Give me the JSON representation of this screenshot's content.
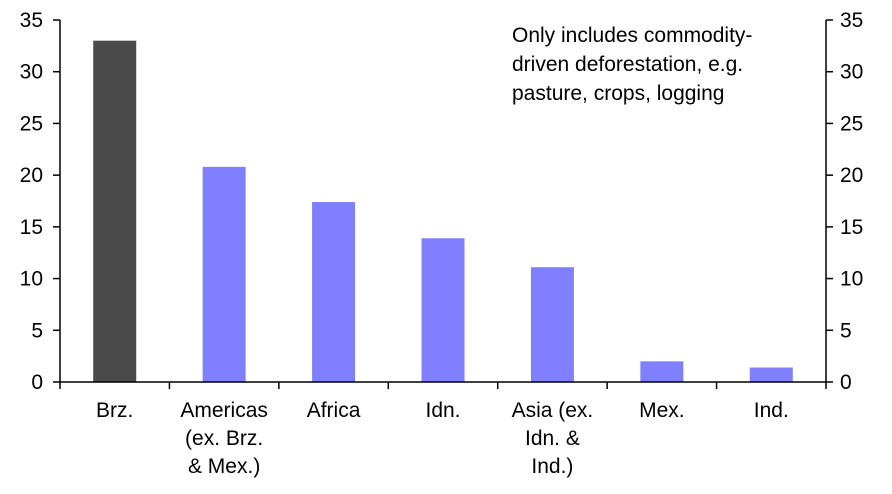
{
  "chart_data": {
    "type": "bar",
    "title": "",
    "xlabel": "",
    "ylabel": "",
    "ylim": [
      0,
      35
    ],
    "yticks": [
      0,
      5,
      10,
      15,
      20,
      25,
      30,
      35
    ],
    "secondary_y_axis": true,
    "grid": false,
    "categories": [
      [
        "Brz."
      ],
      [
        "Americas",
        "(ex. Brz.",
        "& Mex.)"
      ],
      [
        "Africa"
      ],
      [
        "Idn."
      ],
      [
        "Asia (ex.",
        "Idn. &",
        "Ind.)"
      ],
      [
        "Mex."
      ],
      [
        "Ind."
      ]
    ],
    "values": [
      33,
      20.8,
      17.4,
      13.9,
      11.1,
      2.0,
      1.4
    ],
    "bar_colors": [
      "#4a4a4a",
      "#8080ff",
      "#8080ff",
      "#8080ff",
      "#8080ff",
      "#8080ff",
      "#8080ff"
    ],
    "annotation": [
      "Only includes commodity-",
      "driven deforestation, e.g.",
      "pasture, crops, logging"
    ]
  }
}
